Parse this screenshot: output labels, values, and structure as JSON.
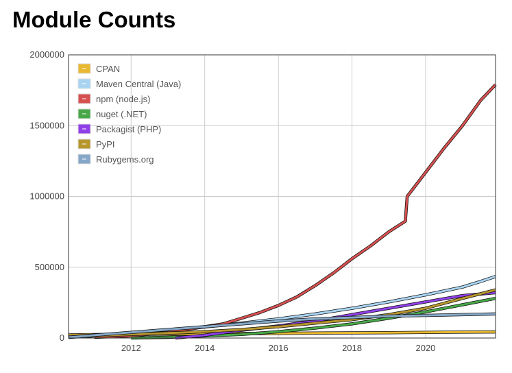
{
  "title": "Module Counts",
  "chart_data": {
    "type": "line",
    "title": "Module Counts",
    "xlabel": "",
    "ylabel": "",
    "xlim": [
      2010.3,
      2021.9
    ],
    "ylim": [
      0,
      2000000
    ],
    "x_ticks": [
      2012,
      2014,
      2016,
      2018,
      2020
    ],
    "y_ticks": [
      0,
      500000,
      1000000,
      1500000,
      2000000
    ],
    "grid": true,
    "legend_position": "top-left",
    "series": [
      {
        "name": "CPAN",
        "color": "#e8b830",
        "points": [
          [
            2010.3,
            22000
          ],
          [
            2011,
            24000
          ],
          [
            2012,
            26000
          ],
          [
            2013,
            28000
          ],
          [
            2014,
            30000
          ],
          [
            2015,
            31500
          ],
          [
            2016,
            33000
          ],
          [
            2017,
            35000
          ],
          [
            2018,
            36500
          ],
          [
            2019,
            38000
          ],
          [
            2020,
            40000
          ],
          [
            2021,
            41500
          ],
          [
            2021.9,
            43000
          ]
        ]
      },
      {
        "name": "Maven Central (Java)",
        "color": "#a8d4f2",
        "points": [
          [
            2010.3,
            10000
          ],
          [
            2011,
            20000
          ],
          [
            2012,
            38000
          ],
          [
            2013,
            58000
          ],
          [
            2014,
            78000
          ],
          [
            2015,
            105000
          ],
          [
            2016,
            135000
          ],
          [
            2017,
            170000
          ],
          [
            2018,
            210000
          ],
          [
            2019,
            255000
          ],
          [
            2020,
            305000
          ],
          [
            2021,
            360000
          ],
          [
            2021.5,
            400000
          ],
          [
            2021.9,
            435000
          ]
        ]
      },
      {
        "name": "npm (node.js)",
        "color": "#d65050",
        "points": [
          [
            2011,
            5000
          ],
          [
            2012,
            15000
          ],
          [
            2013,
            40000
          ],
          [
            2014,
            80000
          ],
          [
            2014.5,
            100000
          ],
          [
            2015,
            140000
          ],
          [
            2015.5,
            180000
          ],
          [
            2016,
            230000
          ],
          [
            2016.5,
            290000
          ],
          [
            2017,
            370000
          ],
          [
            2017.5,
            460000
          ],
          [
            2018,
            560000
          ],
          [
            2018.5,
            650000
          ],
          [
            2019,
            750000
          ],
          [
            2019.45,
            825000
          ],
          [
            2019.5,
            1000000
          ],
          [
            2020,
            1170000
          ],
          [
            2020.5,
            1340000
          ],
          [
            2021,
            1500000
          ],
          [
            2021.5,
            1680000
          ],
          [
            2021.9,
            1790000
          ]
        ]
      },
      {
        "name": "nuget (.NET)",
        "color": "#48a848",
        "points": [
          [
            2012,
            0
          ],
          [
            2013,
            5000
          ],
          [
            2014,
            15000
          ],
          [
            2015,
            25000
          ],
          [
            2016,
            45000
          ],
          [
            2017,
            70000
          ],
          [
            2018,
            100000
          ],
          [
            2019,
            140000
          ],
          [
            2020,
            185000
          ],
          [
            2021,
            235000
          ],
          [
            2021.9,
            280000
          ]
        ]
      },
      {
        "name": "Packagist (PHP)",
        "color": "#9040e8",
        "points": [
          [
            2013.2,
            0
          ],
          [
            2014,
            20000
          ],
          [
            2015,
            55000
          ],
          [
            2016,
            85000
          ],
          [
            2017,
            120000
          ],
          [
            2018,
            165000
          ],
          [
            2019,
            210000
          ],
          [
            2020,
            255000
          ],
          [
            2021,
            300000
          ],
          [
            2021.9,
            320000
          ]
        ]
      },
      {
        "name": "PyPI",
        "color": "#b8962e",
        "points": [
          [
            2010.3,
            5000
          ],
          [
            2011,
            15000
          ],
          [
            2012,
            25000
          ],
          [
            2013,
            35000
          ],
          [
            2014,
            45000
          ],
          [
            2015,
            60000
          ],
          [
            2016,
            80000
          ],
          [
            2017,
            105000
          ],
          [
            2018,
            130000
          ],
          [
            2019,
            165000
          ],
          [
            2020,
            210000
          ],
          [
            2021,
            280000
          ],
          [
            2021.9,
            340000
          ]
        ]
      },
      {
        "name": "Rubygems.org",
        "color": "#86a8c8",
        "points": [
          [
            2010.3,
            5000
          ],
          [
            2011,
            20000
          ],
          [
            2012,
            40000
          ],
          [
            2013,
            60000
          ],
          [
            2014,
            80000
          ],
          [
            2015,
            100000
          ],
          [
            2016,
            120000
          ],
          [
            2017,
            135000
          ],
          [
            2018,
            145000
          ],
          [
            2019,
            155000
          ],
          [
            2020,
            160000
          ],
          [
            2021,
            165000
          ],
          [
            2021.9,
            170000
          ]
        ]
      }
    ]
  }
}
